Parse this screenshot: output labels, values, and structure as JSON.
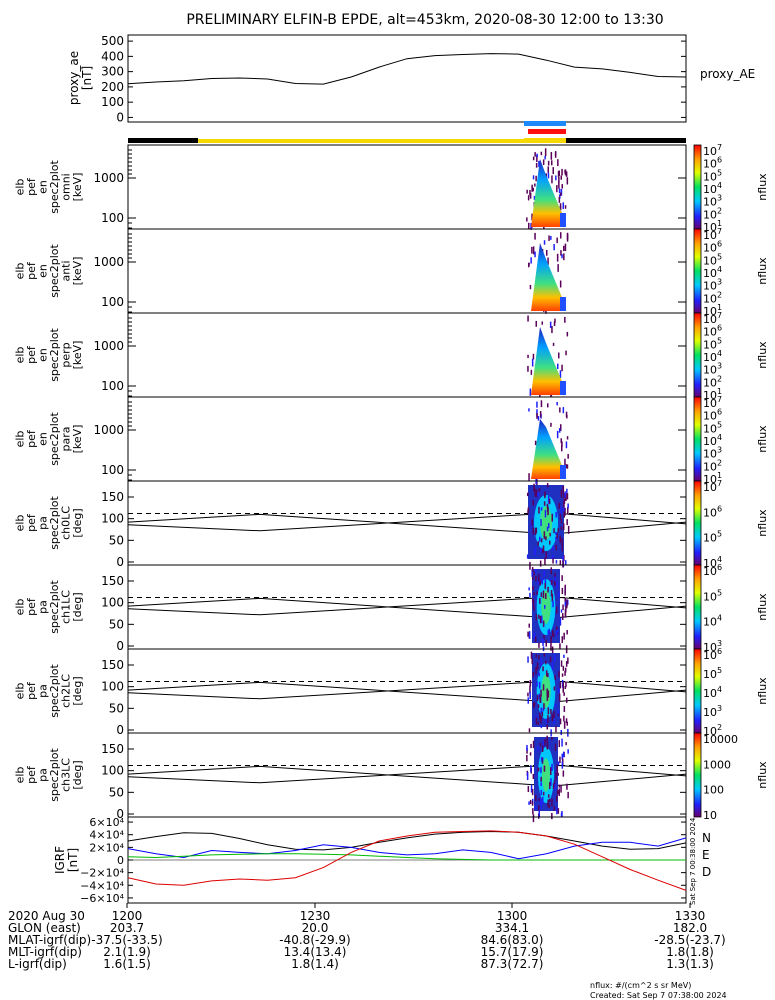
{
  "title": "PRELIMINARY ELFIN-B EPDE, alt=453km, 2020-08-30 12:00 to 13:30",
  "chart_data": [
    {
      "type": "line",
      "name": "proxy_ae",
      "ylabel_lines": [
        "proxy_ae",
        "[nT]"
      ],
      "right_label": "proxy_AE",
      "ylim": [
        -30,
        540
      ],
      "yticks": [
        0,
        100,
        200,
        300,
        400,
        500
      ],
      "ytick_labels": [
        "0",
        "100",
        "200",
        "300",
        "400",
        "500"
      ],
      "x": [
        0.0,
        0.05,
        0.1,
        0.15,
        0.2,
        0.25,
        0.3,
        0.35,
        0.4,
        0.45,
        0.5,
        0.55,
        0.6,
        0.65,
        0.7,
        0.75,
        0.8,
        0.85,
        0.9,
        0.95,
        1.0
      ],
      "values": [
        220,
        232,
        240,
        255,
        258,
        252,
        222,
        218,
        265,
        330,
        385,
        405,
        412,
        418,
        415,
        375,
        330,
        318,
        295,
        268,
        265
      ]
    },
    {
      "type": "heatmap",
      "name": "en_spec2plot_omni",
      "ylabel_lines": [
        "elb",
        "pef",
        "en",
        "spec2plot",
        "omni",
        "[keV]"
      ],
      "ytick_labels": [
        "1000",
        "100"
      ],
      "cbar_label": "nflux",
      "cbar_ticks": [
        "10^7",
        "10^6",
        "10^5",
        "10^4",
        "10^3",
        "10^2",
        "10^1"
      ]
    },
    {
      "type": "heatmap",
      "name": "en_spec2plot_anti",
      "ylabel_lines": [
        "elb",
        "pef",
        "en",
        "spec2plot",
        "anti",
        "[keV]"
      ],
      "ytick_labels": [
        "1000",
        "100"
      ],
      "cbar_label": "nflux",
      "cbar_ticks": [
        "10^7",
        "10^6",
        "10^5",
        "10^4",
        "10^3",
        "10^2",
        "10^1"
      ]
    },
    {
      "type": "heatmap",
      "name": "en_spec2plot_perp",
      "ylabel_lines": [
        "elb",
        "pef",
        "en",
        "spec2plot",
        "perp",
        "[keV]"
      ],
      "ytick_labels": [
        "1000",
        "100"
      ],
      "cbar_label": "nflux",
      "cbar_ticks": [
        "10^7",
        "10^6",
        "10^5",
        "10^4",
        "10^3",
        "10^2",
        "10^1"
      ]
    },
    {
      "type": "heatmap",
      "name": "en_spec2plot_para",
      "ylabel_lines": [
        "elb",
        "pef",
        "en",
        "spec2plot",
        "para",
        "[keV]"
      ],
      "ytick_labels": [
        "1000",
        "100"
      ],
      "cbar_label": "nflux",
      "cbar_ticks": [
        "10^7",
        "10^6",
        "10^5",
        "10^4",
        "10^3",
        "10^2",
        "10^1"
      ]
    },
    {
      "type": "heatmap",
      "name": "pa_spec2plot_ch0LC",
      "ylabel_lines": [
        "elb",
        "pef",
        "pa",
        "spec2plot",
        "ch0LC",
        "[deg]"
      ],
      "ytick_labels": [
        "150",
        "100",
        "50",
        "0"
      ],
      "cbar_label": "nflux",
      "cbar_ticks": [
        "10^7",
        "10^6",
        "10^5",
        "10^4"
      ]
    },
    {
      "type": "heatmap",
      "name": "pa_spec2plot_ch1LC",
      "ylabel_lines": [
        "elb",
        "pef",
        "pa",
        "spec2plot",
        "ch1LC",
        "[deg]"
      ],
      "ytick_labels": [
        "150",
        "100",
        "50",
        "0"
      ],
      "cbar_label": "nflux",
      "cbar_ticks": [
        "10^6",
        "10^5",
        "10^4",
        "10^3"
      ]
    },
    {
      "type": "heatmap",
      "name": "pa_spec2plot_ch2LC",
      "ylabel_lines": [
        "elb",
        "pef",
        "pa",
        "spec2plot",
        "ch2LC",
        "[deg]"
      ],
      "ytick_labels": [
        "150",
        "100",
        "50",
        "0"
      ],
      "cbar_label": "nflux",
      "cbar_ticks": [
        "10^6",
        "10^5",
        "10^4",
        "10^3",
        "10^2"
      ]
    },
    {
      "type": "heatmap",
      "name": "pa_spec2plot_ch3LC",
      "ylabel_lines": [
        "elb",
        "pef",
        "pa",
        "spec2plot",
        "ch3LC",
        "[deg]"
      ],
      "ytick_labels": [
        "150",
        "100",
        "50",
        "0"
      ],
      "cbar_label": "nflux",
      "cbar_ticks": [
        "10000",
        "1000",
        "100",
        "10"
      ]
    },
    {
      "type": "line",
      "name": "IGRF",
      "ylabel_lines": [
        "IGRF",
        "[nT]"
      ],
      "ylim": [
        -68000,
        68000
      ],
      "ytick_labels": [
        "6×10⁴",
        "4×10⁴",
        "2×10⁴",
        "0",
        "−2×10⁴",
        "−4×10⁴",
        "−6×10⁴"
      ],
      "yticks": [
        60000,
        40000,
        20000,
        0,
        -20000,
        -40000,
        -60000
      ],
      "legend": [
        "N",
        "E",
        "D"
      ],
      "x": [
        0.0,
        0.05,
        0.1,
        0.15,
        0.2,
        0.25,
        0.3,
        0.35,
        0.4,
        0.45,
        0.5,
        0.55,
        0.6,
        0.65,
        0.7,
        0.75,
        0.8,
        0.85,
        0.9,
        0.95,
        1.0
      ],
      "series": [
        {
          "name": "total",
          "color": "#000000",
          "values": [
            30000,
            37000,
            43000,
            42000,
            34000,
            24000,
            17000,
            16000,
            20000,
            28000,
            35000,
            41000,
            44000,
            45000,
            44000,
            38000,
            30000,
            22000,
            17000,
            18000,
            27000
          ]
        },
        {
          "name": "N",
          "color": "#0000ff",
          "values": [
            18000,
            10000,
            4000,
            15000,
            12000,
            10000,
            15000,
            24000,
            20000,
            12000,
            8000,
            10000,
            16000,
            12000,
            2000,
            10000,
            22000,
            28000,
            28000,
            22000,
            35000
          ]
        },
        {
          "name": "E",
          "color": "#00bb00",
          "values": [
            5000,
            4000,
            6000,
            8000,
            9000,
            10000,
            10000,
            9000,
            8000,
            6000,
            4000,
            2000,
            1000,
            0,
            0,
            0,
            0,
            0,
            0,
            0,
            0
          ]
        },
        {
          "name": "D",
          "color": "#dd0000",
          "values": [
            -28000,
            -38000,
            -40000,
            -33000,
            -30000,
            -32000,
            -28000,
            -12000,
            12000,
            30000,
            38000,
            44000,
            45000,
            46000,
            44000,
            38000,
            25000,
            5000,
            -15000,
            -32000,
            -48000
          ]
        }
      ]
    }
  ],
  "header_bar": {
    "segments": [
      "black",
      "yellow",
      "blue",
      "red",
      "black"
    ]
  },
  "xaxis": {
    "ticks": [
      "1200",
      "1230",
      "1300",
      "1330"
    ],
    "row_labels": [
      "2020 Aug 30",
      "GLON (east)",
      "MLAT-igrf(dip)",
      "MLT-igrf(dip)",
      "L-igrf(dip)"
    ],
    "rows": [
      [
        "1200",
        "1230",
        "1300",
        "1330"
      ],
      [
        "203.7",
        "20.0",
        "334.1",
        "182.0"
      ],
      [
        "-37.5(-33.5)",
        "-40.8(-29.9)",
        "84.6(83.0)",
        "-28.5(-23.7)"
      ],
      [
        "2.1(1.9)",
        "13.4(13.4)",
        "15.7(17.9)",
        "1.8(1.8)"
      ],
      [
        "1.6(1.5)",
        "1.8(1.4)",
        "87.3(72.7)",
        "1.3(1.3)"
      ]
    ]
  },
  "side_stamp": "Sat Sep  7 00:38:00 2024",
  "footer": {
    "nflux_def": "nflux: #/(cm^2 s sr MeV)",
    "created": "Created: Sat Sep  7 07:38:00 2024"
  }
}
